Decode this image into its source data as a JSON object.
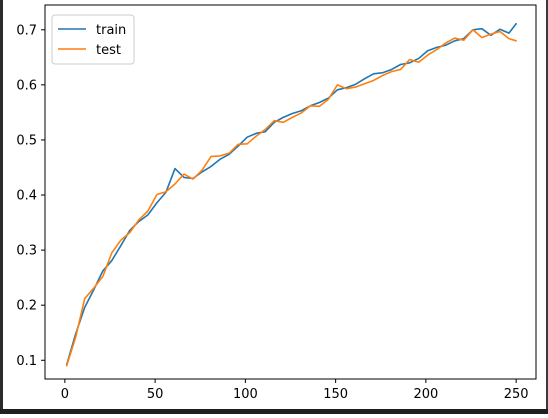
{
  "chart_data": {
    "type": "line",
    "title": "",
    "xlabel": "",
    "ylabel": "",
    "xlim": [
      -11,
      261
    ],
    "ylim": [
      0.066,
      0.745
    ],
    "xticks": [
      0,
      50,
      100,
      150,
      200,
      250
    ],
    "yticks": [
      0.1,
      0.2,
      0.3,
      0.4,
      0.5,
      0.6,
      0.7
    ],
    "grid": false,
    "legend_position": "upper left",
    "x": [
      1,
      6,
      11,
      16,
      21,
      26,
      31,
      36,
      41,
      46,
      51,
      56,
      61,
      66,
      71,
      76,
      81,
      86,
      91,
      96,
      101,
      106,
      111,
      116,
      121,
      126,
      131,
      136,
      141,
      146,
      151,
      156,
      161,
      166,
      171,
      176,
      181,
      186,
      191,
      196,
      201,
      206,
      211,
      216,
      221,
      226,
      231,
      236,
      241,
      246,
      250
    ],
    "series": [
      {
        "name": "train",
        "color": "#1f77b4",
        "values": [
          0.092,
          0.148,
          0.196,
          0.228,
          0.262,
          0.281,
          0.308,
          0.336,
          0.352,
          0.364,
          0.386,
          0.405,
          0.448,
          0.432,
          0.43,
          0.442,
          0.452,
          0.465,
          0.474,
          0.489,
          0.505,
          0.512,
          0.515,
          0.532,
          0.541,
          0.548,
          0.553,
          0.562,
          0.568,
          0.576,
          0.591,
          0.595,
          0.601,
          0.611,
          0.62,
          0.622,
          0.628,
          0.637,
          0.64,
          0.648,
          0.662,
          0.668,
          0.672,
          0.68,
          0.684,
          0.7,
          0.702,
          0.69,
          0.701,
          0.694,
          0.711
        ]
      },
      {
        "name": "test",
        "color": "#ff7f0e",
        "values": [
          0.09,
          0.142,
          0.212,
          0.231,
          0.252,
          0.295,
          0.318,
          0.332,
          0.355,
          0.371,
          0.401,
          0.406,
          0.42,
          0.438,
          0.429,
          0.445,
          0.47,
          0.471,
          0.476,
          0.492,
          0.493,
          0.507,
          0.519,
          0.535,
          0.532,
          0.541,
          0.549,
          0.562,
          0.561,
          0.574,
          0.6,
          0.593,
          0.596,
          0.602,
          0.608,
          0.617,
          0.624,
          0.628,
          0.646,
          0.641,
          0.654,
          0.664,
          0.676,
          0.685,
          0.681,
          0.7,
          0.686,
          0.692,
          0.697,
          0.684,
          0.68
        ]
      }
    ]
  }
}
